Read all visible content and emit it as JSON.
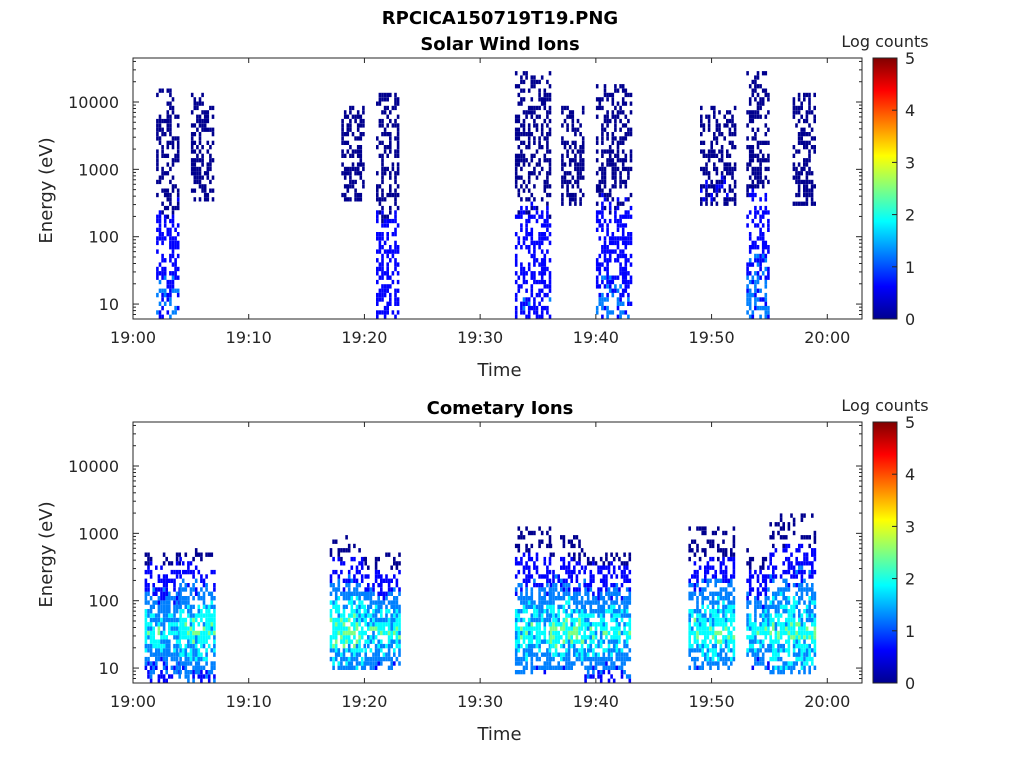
{
  "figure": {
    "file_title": "RPCICA150719T19.PNG"
  },
  "colormap": [
    "#00008f",
    "#0000ff",
    "#0080ff",
    "#00ffff",
    "#80ff80",
    "#ffff00",
    "#ff8000",
    "#ff0000",
    "#800000"
  ],
  "chart_data": [
    {
      "type": "heatmap",
      "title": "Solar Wind Ions",
      "xlabel": "Time",
      "ylabel": "Energy (eV)",
      "y_scale": "log",
      "xlim": [
        "19:00",
        "20:03"
      ],
      "ylim": [
        6,
        45000
      ],
      "x_ticks": [
        "19:00",
        "19:10",
        "19:20",
        "19:30",
        "19:40",
        "19:50",
        "20:00"
      ],
      "y_ticks": [
        "10",
        "100",
        "1000",
        "10000"
      ],
      "y_tick_values": [
        10,
        100,
        1000,
        10000
      ],
      "colorbar": {
        "label": "Log counts",
        "range": [
          0,
          5
        ],
        "ticks": [
          "0",
          "1",
          "2",
          "3",
          "4",
          "5"
        ]
      },
      "bursts": [
        {
          "start": "19:02",
          "end": "19:04",
          "e_min": 6,
          "e_max": 15000,
          "peak_log_counts": 1.2
        },
        {
          "start": "19:05",
          "end": "19:07",
          "e_min": 350,
          "e_max": 14000,
          "peak_log_counts": 0.3
        },
        {
          "start": "19:18",
          "end": "19:20",
          "e_min": 350,
          "e_max": 9000,
          "peak_log_counts": 0.3
        },
        {
          "start": "19:21",
          "end": "19:23",
          "e_min": 6,
          "e_max": 14000,
          "peak_log_counts": 1.0
        },
        {
          "start": "19:33",
          "end": "19:36",
          "e_min": 6,
          "e_max": 30000,
          "peak_log_counts": 1.0
        },
        {
          "start": "19:37",
          "end": "19:39",
          "e_min": 300,
          "e_max": 9000,
          "peak_log_counts": 0.3
        },
        {
          "start": "19:40",
          "end": "19:43",
          "e_min": 6,
          "e_max": 18000,
          "peak_log_counts": 1.2
        },
        {
          "start": "19:49",
          "end": "19:52",
          "e_min": 300,
          "e_max": 9000,
          "peak_log_counts": 0.4
        },
        {
          "start": "19:53",
          "end": "19:55",
          "e_min": 6,
          "e_max": 30000,
          "peak_log_counts": 1.4
        },
        {
          "start": "19:57",
          "end": "19:59",
          "e_min": 300,
          "e_max": 14000,
          "peak_log_counts": 0.3
        }
      ]
    },
    {
      "type": "heatmap",
      "title": "Cometary Ions",
      "xlabel": "Time",
      "ylabel": "Energy (eV)",
      "y_scale": "log",
      "xlim": [
        "19:00",
        "20:03"
      ],
      "ylim": [
        6,
        45000
      ],
      "x_ticks": [
        "19:00",
        "19:10",
        "19:20",
        "19:30",
        "19:40",
        "19:50",
        "20:00"
      ],
      "y_ticks": [
        "10",
        "100",
        "1000",
        "10000"
      ],
      "y_tick_values": [
        10,
        100,
        1000,
        10000
      ],
      "colorbar": {
        "label": "Log counts",
        "range": [
          0,
          5
        ],
        "ticks": [
          "0",
          "1",
          "2",
          "3",
          "4",
          "5"
        ]
      },
      "bursts": [
        {
          "start": "19:01",
          "end": "19:04",
          "e_min": 6,
          "e_max": 500,
          "peak_log_counts": 2.3
        },
        {
          "start": "19:04",
          "end": "19:07",
          "e_min": 6,
          "e_max": 600,
          "peak_log_counts": 2.6
        },
        {
          "start": "19:17",
          "end": "19:20",
          "e_min": 10,
          "e_max": 1000,
          "peak_log_counts": 2.8
        },
        {
          "start": "19:20",
          "end": "19:23",
          "e_min": 10,
          "e_max": 500,
          "peak_log_counts": 2.5
        },
        {
          "start": "19:33",
          "end": "19:36",
          "e_min": 8,
          "e_max": 1200,
          "peak_log_counts": 2.4
        },
        {
          "start": "19:36",
          "end": "19:39",
          "e_min": 10,
          "e_max": 1000,
          "peak_log_counts": 2.7
        },
        {
          "start": "19:39",
          "end": "19:43",
          "e_min": 6,
          "e_max": 500,
          "peak_log_counts": 2.4
        },
        {
          "start": "19:48",
          "end": "19:52",
          "e_min": 10,
          "e_max": 1200,
          "peak_log_counts": 2.6
        },
        {
          "start": "19:53",
          "end": "19:55",
          "e_min": 10,
          "e_max": 600,
          "peak_log_counts": 2.3
        },
        {
          "start": "19:55",
          "end": "19:59",
          "e_min": 8,
          "e_max": 2000,
          "peak_log_counts": 2.6
        }
      ]
    }
  ]
}
